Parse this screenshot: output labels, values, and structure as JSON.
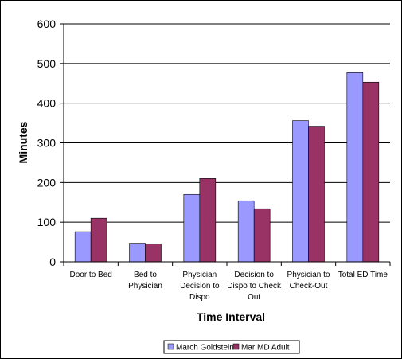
{
  "chart_data": {
    "type": "bar",
    "title": "",
    "xlabel": "Time Interval",
    "ylabel": "Minutes",
    "ylim": [
      0,
      600
    ],
    "yticks": [
      "0",
      "100",
      "200",
      "300",
      "400",
      "500",
      "600"
    ],
    "grid": true,
    "legend_position": "bottom",
    "categories": [
      [
        "Door to Bed"
      ],
      [
        "Bed to",
        "Physician"
      ],
      [
        "Physician",
        "Decision to",
        "Dispo"
      ],
      [
        "Decision to",
        "Dispo to Check",
        "Out"
      ],
      [
        "Physician to",
        "Check-Out"
      ],
      [
        "Total ED Time"
      ]
    ],
    "series": [
      {
        "name": "March Goldstein",
        "color": "#9999ff",
        "values": [
          76,
          47,
          170,
          154,
          356,
          477
        ]
      },
      {
        "name": "Mar MD Adult",
        "color": "#993366",
        "values": [
          110,
          45,
          210,
          134,
          342,
          453
        ]
      }
    ]
  }
}
